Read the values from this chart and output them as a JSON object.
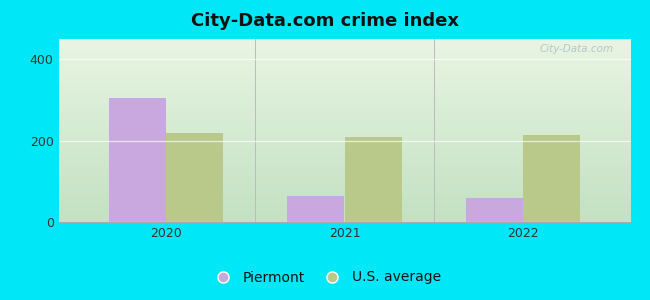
{
  "title": "City-Data.com crime index",
  "years": [
    2020,
    2021,
    2022
  ],
  "piermont": [
    305,
    65,
    60
  ],
  "us_average": [
    218,
    210,
    215
  ],
  "piermont_color": "#c9a8e0",
  "us_average_color": "#b8c98a",
  "bar_width": 0.32,
  "ylim": [
    0,
    450
  ],
  "yticks": [
    0,
    200,
    400
  ],
  "background_outer": "#00e8f8",
  "grad_top": "#e8f5e2",
  "grad_bottom": "#c8e8c8",
  "title_fontsize": 13,
  "legend_fontsize": 10,
  "tick_fontsize": 9,
  "watermark_text": "City-Data.com",
  "watermark_color": "#aabfcc"
}
